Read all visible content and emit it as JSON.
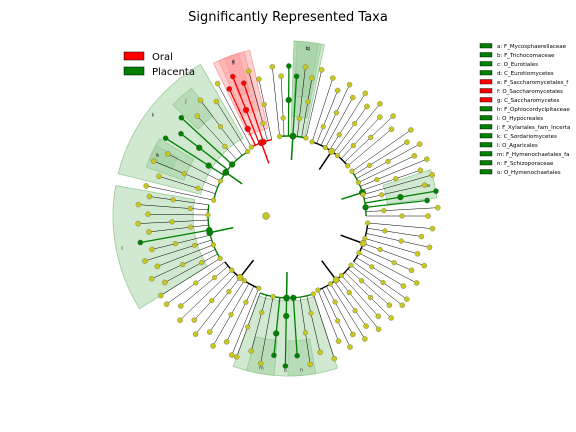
{
  "title": "Significantly Represented Taxa",
  "colors": {
    "oral": "#ff0000",
    "placenta": "#008000",
    "node_default": "#c7c720",
    "sector_green": "#99cc99",
    "sector_red": "#ff9999",
    "branch": "#000000"
  },
  "legend": [
    {
      "label": "Oral",
      "color": "#ff0000"
    },
    {
      "label": "Placenta",
      "color": "#008000"
    }
  ],
  "taxa_key": [
    {
      "letter": "a",
      "text": "a: F_Mycosphaerellaceae",
      "group": "placenta"
    },
    {
      "letter": "b",
      "text": "b: F_Trichocomaceae",
      "group": "placenta"
    },
    {
      "letter": "c",
      "text": "c: O_Eurotiales",
      "group": "placenta"
    },
    {
      "letter": "d",
      "text": "d: C_Eurotiomycetes",
      "group": "placenta"
    },
    {
      "letter": "e",
      "text": "e: F_Saccharomycetales_f",
      "group": "oral"
    },
    {
      "letter": "f",
      "text": "f: O_Saccharomycetales",
      "group": "oral"
    },
    {
      "letter": "g",
      "text": "g: C_Saccharomycetes",
      "group": "oral"
    },
    {
      "letter": "h",
      "text": "h: F_Ophiocordycipitaceae",
      "group": "placenta"
    },
    {
      "letter": "i",
      "text": "i: O_Hypocreales",
      "group": "placenta"
    },
    {
      "letter": "j",
      "text": "j: F_Xylariales_fam_Incerta",
      "group": "placenta"
    },
    {
      "letter": "k",
      "text": "k: C_Sordariomycetes",
      "group": "placenta"
    },
    {
      "letter": "l",
      "text": "l: O_Agaricales",
      "group": "placenta"
    },
    {
      "letter": "m",
      "text": "m: F_Hymenochaetales_fa",
      "group": "placenta"
    },
    {
      "letter": "n",
      "text": "n: F_Schizoporaceae",
      "group": "placenta"
    },
    {
      "letter": "o",
      "text": "o: O_Hymenochaetales",
      "group": "placenta"
    }
  ],
  "sectors": [
    {
      "letter": "a",
      "group": "placenta",
      "start_deg": 72,
      "end_deg": 83
    },
    {
      "letter": "b",
      "group": "placenta",
      "start_deg": 3,
      "end_deg": 10
    },
    {
      "letter": "c",
      "group": "placenta",
      "start_deg": 2,
      "end_deg": 11
    },
    {
      "letter": "d",
      "group": "placenta",
      "start_deg": 2,
      "end_deg": 12
    },
    {
      "letter": "e",
      "group": "oral",
      "start_deg": -22,
      "end_deg": -17
    },
    {
      "letter": "f",
      "group": "oral",
      "start_deg": -24,
      "end_deg": -15
    },
    {
      "letter": "g",
      "group": "oral",
      "start_deg": -26,
      "end_deg": -13
    },
    {
      "letter": "h",
      "group": "placenta",
      "start_deg": -68,
      "end_deg": -62
    },
    {
      "letter": "i",
      "group": "placenta",
      "start_deg": -71,
      "end_deg": -59
    },
    {
      "letter": "j",
      "group": "placenta",
      "start_deg": -46,
      "end_deg": -37
    },
    {
      "letter": "k",
      "group": "placenta",
      "start_deg": -76,
      "end_deg": -30
    },
    {
      "letter": "l",
      "group": "placenta",
      "start_deg": -122,
      "end_deg": -80
    },
    {
      "letter": "m",
      "group": "placenta",
      "start_deg": -175,
      "end_deg": -165
    },
    {
      "letter": "n",
      "group": "placenta",
      "start_deg": -190,
      "end_deg": -180
    },
    {
      "letter": "o",
      "group": "placenta",
      "start_deg": -198,
      "end_deg": -160
    }
  ]
}
